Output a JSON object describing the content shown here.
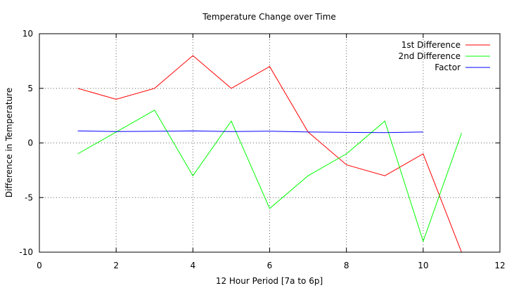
{
  "chart_data": {
    "type": "line",
    "title": "Temperature Change over Time",
    "xlabel": "12 Hour Period [7a to 6p]",
    "ylabel": "Difference in Temperature",
    "xlim": [
      0,
      12
    ],
    "ylim": [
      -10,
      10
    ],
    "xticks": [
      0,
      2,
      4,
      6,
      8,
      10,
      12
    ],
    "yticks": [
      -10,
      -5,
      0,
      5,
      10
    ],
    "grid": true,
    "legend_position": "top-right",
    "series": [
      {
        "name": "1st Difference",
        "color": "#ff0000",
        "x": [
          1,
          2,
          3,
          4,
          5,
          6,
          7,
          8,
          9,
          10,
          11
        ],
        "y": [
          5,
          4,
          5,
          8,
          5,
          7,
          1,
          -2,
          -3,
          -1,
          -10
        ]
      },
      {
        "name": "2nd Difference",
        "color": "#00ff00",
        "x": [
          1,
          2,
          3,
          4,
          5,
          6,
          7,
          8,
          9,
          10,
          11
        ],
        "y": [
          -1,
          1,
          3,
          -3,
          2,
          -6,
          -3,
          -1,
          2,
          -9,
          0.9
        ]
      },
      {
        "name": "Factor",
        "color": "#0000ff",
        "x": [
          1,
          2,
          3,
          4,
          5,
          6,
          7,
          8,
          9,
          10
        ],
        "y": [
          1.1,
          1.05,
          1.07,
          1.1,
          1.05,
          1.08,
          1.0,
          0.97,
          0.95,
          1.0
        ]
      }
    ]
  }
}
